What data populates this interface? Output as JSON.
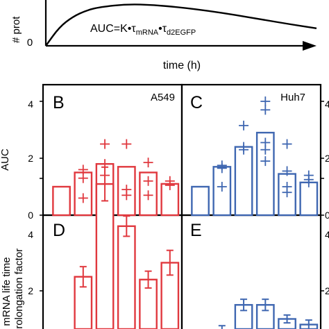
{
  "top_panel": {
    "ylabel": "# prot",
    "xlabel": "time (h)",
    "y_zero_label": "0",
    "equation": {
      "main": "AUC=K•τ",
      "sub1": "mRNA",
      "mid": "•τ",
      "sub2": "d2EGFP"
    }
  },
  "panels": {
    "B": {
      "letter": "B",
      "label": "A549"
    },
    "C": {
      "letter": "C",
      "label": "Huh7"
    },
    "D": {
      "letter": "D",
      "label": ""
    },
    "E": {
      "letter": "E",
      "label": ""
    }
  },
  "axis_labels": {
    "auc": "AUC",
    "prolong_line1": "mRNA life time",
    "prolong_line2": "prolongation factor"
  },
  "ticks": {
    "row1_left": [
      "0",
      "2",
      "4"
    ],
    "row1_right": [
      "0",
      "2",
      "4"
    ],
    "row2_left": [
      "2",
      "4"
    ],
    "row2_right": [
      "2",
      "4"
    ]
  },
  "colors": {
    "red": "#e0383e",
    "blue": "#3f67b1",
    "black": "#000000"
  },
  "chart_data": [
    {
      "type": "line",
      "panel": "A",
      "title": "",
      "xlabel": "time (h)",
      "ylabel": "# prot",
      "x": [
        0,
        0.05,
        0.1,
        0.15,
        0.2,
        0.3,
        0.4,
        0.5,
        0.6,
        0.7,
        0.8,
        0.9,
        1.0
      ],
      "series": [
        {
          "values": [
            0,
            0.45,
            0.7,
            0.85,
            0.93,
            1.0,
            0.98,
            0.92,
            0.84,
            0.74,
            0.63,
            0.52,
            0.42
          ]
        }
      ],
      "note_text": "AUC=K•τmRNA•τd2EGFP"
    },
    {
      "type": "bar",
      "panel": "B",
      "label": "A549",
      "ylabel": "AUC",
      "ylim": [
        0,
        4.4
      ],
      "values": [
        1.0,
        1.5,
        1.8,
        1.7,
        1.5,
        1.1
      ],
      "replicates": [
        [],
        [
          1.3,
          1.6,
          0.6
        ],
        [
          2.5,
          1.4,
          1.8
        ],
        [
          2.5,
          0.9,
          0.7
        ],
        [
          1.85,
          1.2,
          0.7
        ],
        [
          1.2,
          1.05
        ]
      ],
      "color": "#e0383e"
    },
    {
      "type": "bar",
      "panel": "C",
      "label": "Huh7",
      "ylabel": "AUC",
      "ylim": [
        0,
        4.4
      ],
      "values": [
        1.0,
        1.7,
        2.4,
        2.9,
        1.45,
        1.15
      ],
      "replicates": [
        [],
        [
          1.75,
          1.65,
          1.0
        ],
        [
          3.15,
          2.4,
          2.3
        ],
        [
          4.0,
          3.7,
          2.55,
          2.3,
          1.9
        ],
        [
          2.5,
          1.55,
          1.0,
          0.8
        ],
        [
          1.4,
          1.25,
          1.15
        ]
      ],
      "color": "#3f67b1"
    },
    {
      "type": "bar",
      "panel": "D",
      "ylabel": "mRNA life time prolongation factor",
      "ylim": [
        1.0,
        4.3
      ],
      "values": [
        1.0,
        2.25,
        3.9,
        3.15,
        2.2,
        2.5
      ],
      "errors": [
        0.02,
        0.18,
        0.3,
        0.18,
        0.15,
        0.22
      ],
      "color": "#e0383e"
    },
    {
      "type": "bar",
      "panel": "E",
      "ylim": [
        1.0,
        4.3
      ],
      "values": [
        1.0,
        1.3,
        1.75,
        1.75,
        1.5,
        1.4
      ],
      "errors": [
        0.02,
        0.08,
        0.1,
        0.1,
        0.07,
        0.08
      ],
      "color": "#3f67b1"
    }
  ]
}
